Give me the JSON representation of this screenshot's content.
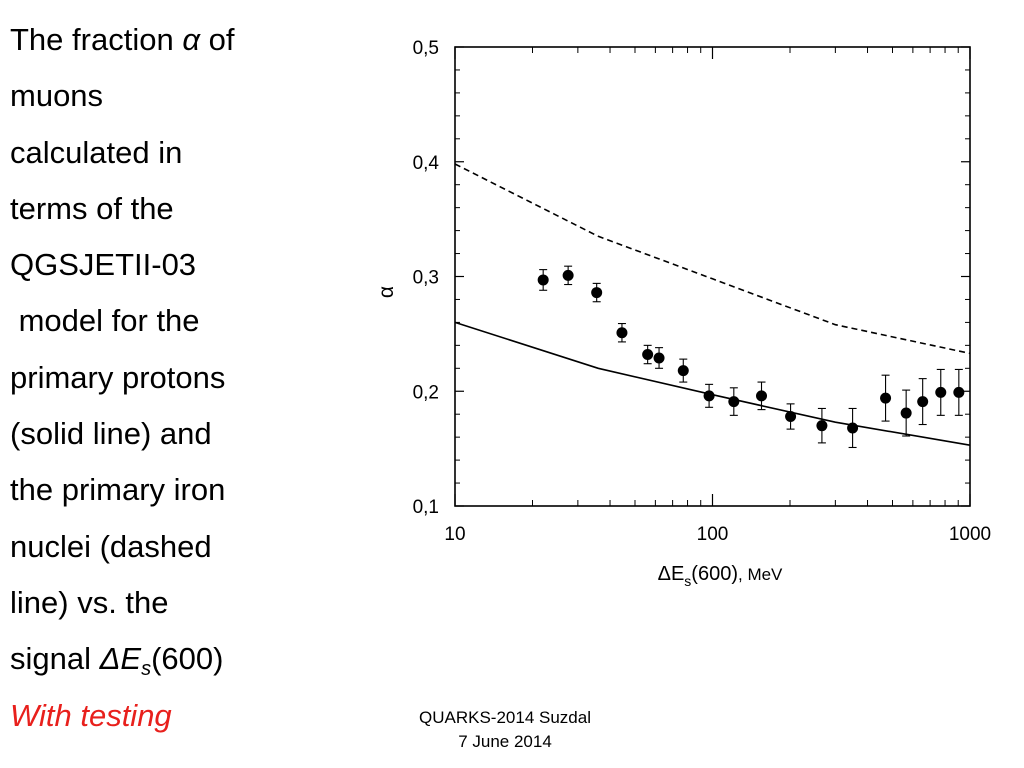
{
  "caption": {
    "l1": "The fraction ",
    "alpha": "α",
    "l1b": " of",
    "l2": "muons",
    "l3": "calculated in",
    "l4": "terms of the",
    "l5": "QGSJETII-03",
    "l6": " model for the",
    "l7": "primary protons",
    "l8": "(solid line) and",
    "l9": "the primary iron",
    "l10": "nuclei (dashed",
    "l11": "line) vs. the",
    "l12a": "signal ",
    "l12b": "ΔE",
    "l12c": "s",
    "l12d": "(600)",
    "testing": "With testing"
  },
  "footer": {
    "line1": "QUARKS-2014  Suzdal",
    "line2": "7 June 2014"
  },
  "chart_data": {
    "type": "scatter",
    "xscale": "log",
    "xlim": [
      10,
      1000
    ],
    "ylim": [
      0.1,
      0.5
    ],
    "x_ticks": [
      "10",
      "100",
      "1000"
    ],
    "y_ticks": [
      "0,1",
      "0,2",
      "0,3",
      "0,4",
      "0,5"
    ],
    "ylabel": "α",
    "xlabel": {
      "delta": "Δ",
      "main": "E",
      "sub": "s",
      "paren": "(600)",
      "unit": ", MeV"
    },
    "series": [
      {
        "style": "points-with-errorbars",
        "x": [
          22,
          27.5,
          35.5,
          44.5,
          56,
          62,
          77,
          97,
          121,
          155,
          201,
          266,
          350,
          470,
          565,
          655,
          770,
          905
        ],
        "y": [
          0.297,
          0.301,
          0.286,
          0.251,
          0.232,
          0.229,
          0.218,
          0.196,
          0.191,
          0.196,
          0.178,
          0.17,
          0.168,
          0.194,
          0.181,
          0.191,
          0.199,
          0.199
        ],
        "err": [
          0.009,
          0.008,
          0.008,
          0.008,
          0.008,
          0.009,
          0.01,
          0.01,
          0.012,
          0.012,
          0.011,
          0.015,
          0.017,
          0.02,
          0.02,
          0.02,
          0.02,
          0.02
        ]
      },
      {
        "style": "solid",
        "x": [
          10,
          36,
          100,
          300,
          1000
        ],
        "y": [
          0.26,
          0.22,
          0.197,
          0.173,
          0.153
        ]
      },
      {
        "style": "dashed",
        "x": [
          10,
          36,
          100,
          300,
          1000
        ],
        "y": [
          0.398,
          0.335,
          0.298,
          0.258,
          0.233
        ]
      }
    ]
  }
}
